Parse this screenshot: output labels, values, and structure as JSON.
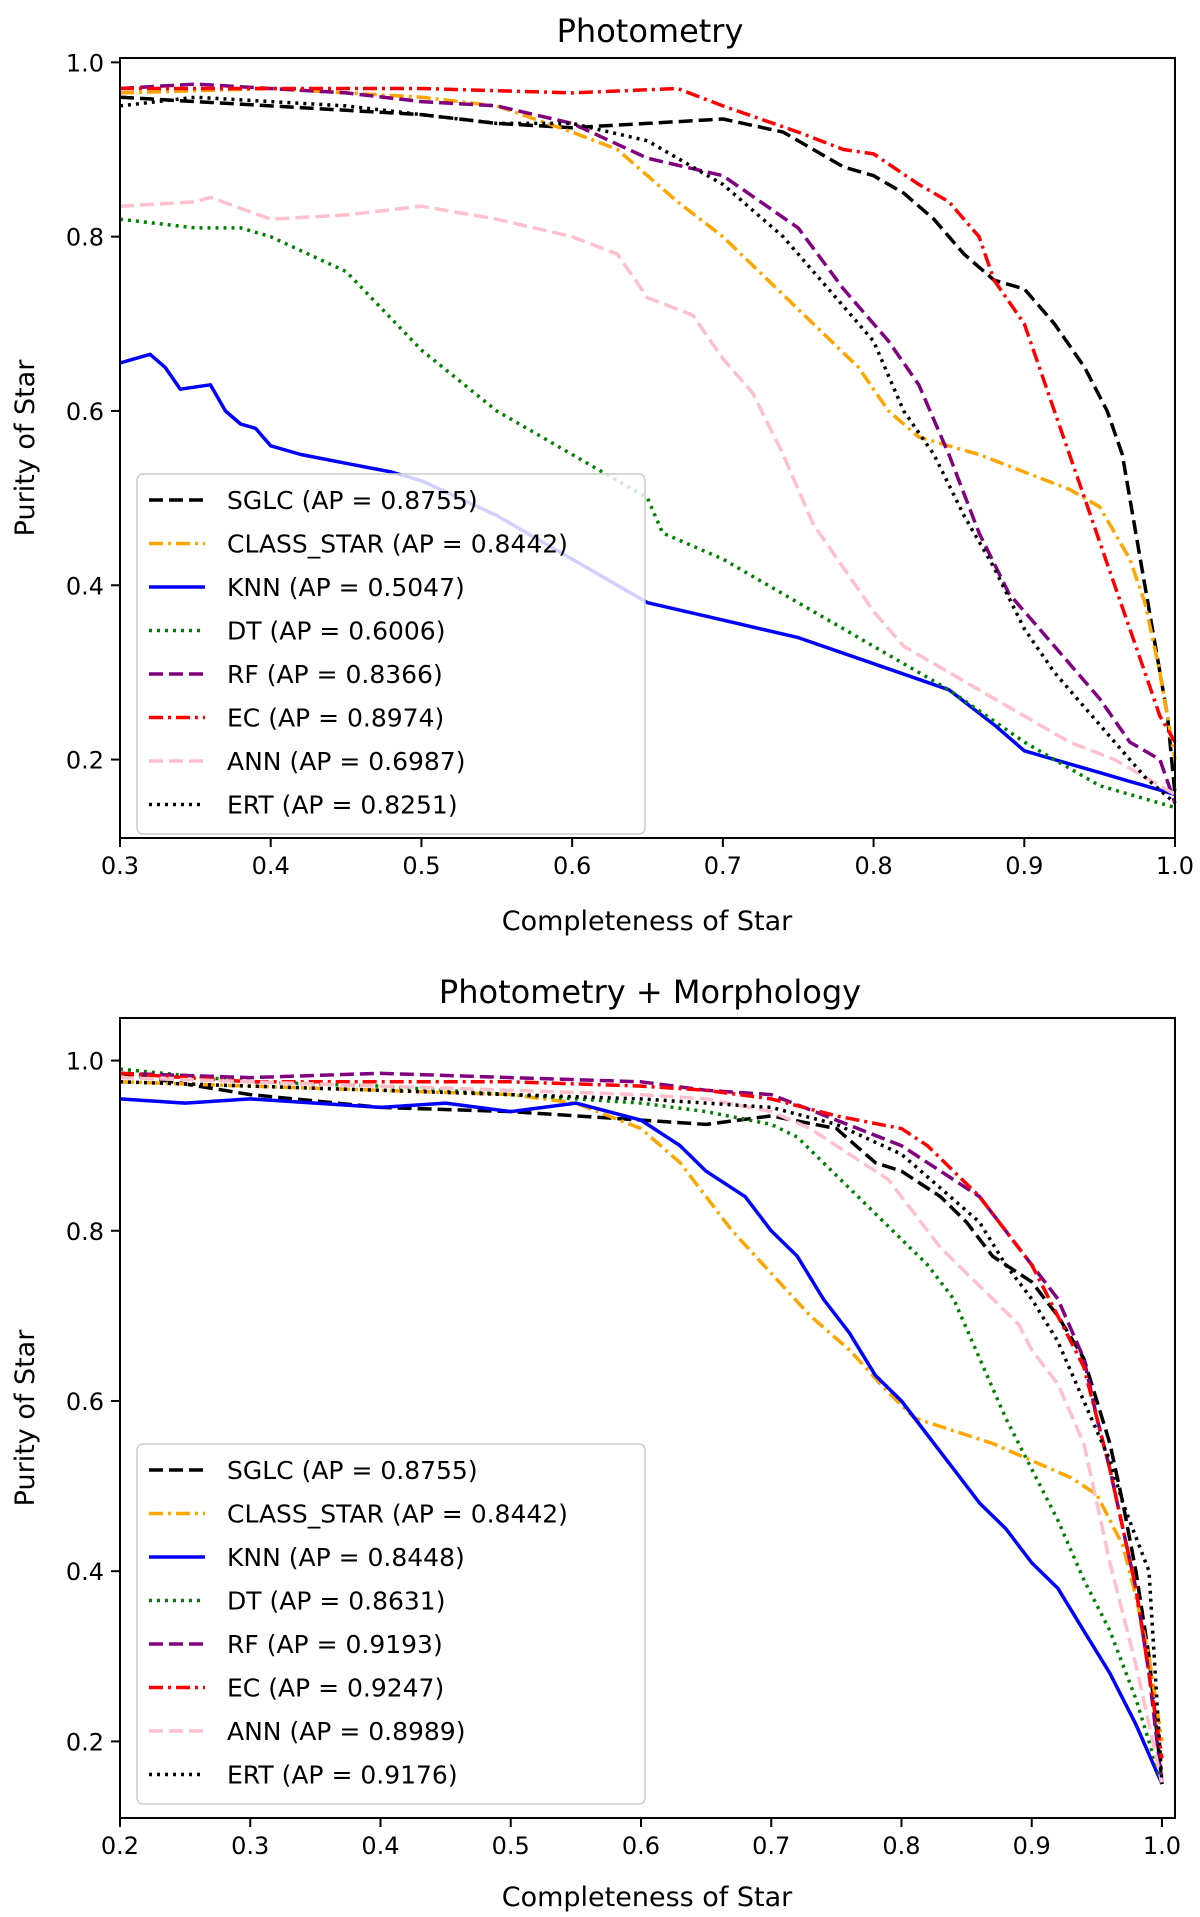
{
  "chart_data": [
    {
      "type": "line",
      "title": "Photometry",
      "xlabel": "Completeness of Star",
      "ylabel": "Purity of Star",
      "xlim": [
        0.3,
        1.0
      ],
      "ylim": [
        0.11,
        1.005
      ],
      "xticks": [
        0.3,
        0.4,
        0.5,
        0.6,
        0.7,
        0.8,
        0.9,
        1.0
      ],
      "yticks": [
        0.2,
        0.4,
        0.6,
        0.8,
        1.0
      ],
      "legend_position": "lower-left",
      "series": [
        {
          "name": "SGLC",
          "label": "SGLC (AP = 0.8755)",
          "color": "#000000",
          "style": "dashed",
          "x": [
            0.3,
            0.35,
            0.4,
            0.45,
            0.5,
            0.55,
            0.6,
            0.65,
            0.7,
            0.74,
            0.78,
            0.8,
            0.82,
            0.84,
            0.86,
            0.88,
            0.9,
            0.92,
            0.94,
            0.955,
            0.965,
            0.975,
            0.985,
            0.995,
            1.0
          ],
          "y": [
            0.96,
            0.955,
            0.95,
            0.945,
            0.94,
            0.93,
            0.925,
            0.93,
            0.935,
            0.92,
            0.88,
            0.87,
            0.85,
            0.82,
            0.78,
            0.75,
            0.74,
            0.7,
            0.65,
            0.6,
            0.55,
            0.45,
            0.35,
            0.25,
            0.16
          ]
        },
        {
          "name": "CLASS_STAR",
          "label": "CLASS_STAR (AP = 0.8442)",
          "color": "#FFA500",
          "style": "dashdot",
          "x": [
            0.3,
            0.4,
            0.5,
            0.55,
            0.6,
            0.63,
            0.65,
            0.67,
            0.7,
            0.73,
            0.76,
            0.79,
            0.81,
            0.83,
            0.85,
            0.87,
            0.9,
            0.93,
            0.95,
            0.97,
            0.98,
            0.99,
            1.0
          ],
          "y": [
            0.965,
            0.97,
            0.96,
            0.95,
            0.92,
            0.9,
            0.87,
            0.84,
            0.8,
            0.75,
            0.7,
            0.65,
            0.6,
            0.57,
            0.56,
            0.55,
            0.53,
            0.51,
            0.49,
            0.43,
            0.38,
            0.3,
            0.2
          ]
        },
        {
          "name": "KNN",
          "label": "KNN (AP = 0.5047)",
          "color": "#0000FF",
          "style": "solid",
          "x": [
            0.3,
            0.32,
            0.33,
            0.34,
            0.36,
            0.37,
            0.38,
            0.39,
            0.4,
            0.42,
            0.45,
            0.48,
            0.5,
            0.55,
            0.6,
            0.65,
            0.7,
            0.75,
            0.8,
            0.85,
            0.88,
            0.9,
            0.93,
            0.95,
            0.97,
            1.0
          ],
          "y": [
            0.655,
            0.665,
            0.65,
            0.625,
            0.63,
            0.6,
            0.585,
            0.58,
            0.56,
            0.55,
            0.54,
            0.53,
            0.52,
            0.48,
            0.43,
            0.38,
            0.36,
            0.34,
            0.31,
            0.28,
            0.24,
            0.21,
            0.195,
            0.185,
            0.175,
            0.16
          ]
        },
        {
          "name": "DT",
          "label": "DT (AP = 0.6006)",
          "color": "#008000",
          "style": "dotted",
          "x": [
            0.3,
            0.35,
            0.38,
            0.4,
            0.45,
            0.5,
            0.55,
            0.6,
            0.65,
            0.66,
            0.7,
            0.75,
            0.8,
            0.85,
            0.9,
            0.95,
            1.0
          ],
          "y": [
            0.82,
            0.81,
            0.81,
            0.8,
            0.76,
            0.67,
            0.6,
            0.55,
            0.5,
            0.46,
            0.43,
            0.38,
            0.33,
            0.28,
            0.22,
            0.17,
            0.145
          ]
        },
        {
          "name": "RF",
          "label": "RF (AP = 0.8366)",
          "color": "#800080",
          "style": "dashed",
          "x": [
            0.3,
            0.35,
            0.4,
            0.45,
            0.5,
            0.55,
            0.6,
            0.65,
            0.7,
            0.75,
            0.78,
            0.81,
            0.83,
            0.85,
            0.87,
            0.89,
            0.91,
            0.93,
            0.95,
            0.97,
            0.99,
            1.0
          ],
          "y": [
            0.97,
            0.975,
            0.97,
            0.965,
            0.955,
            0.95,
            0.93,
            0.89,
            0.87,
            0.81,
            0.74,
            0.68,
            0.63,
            0.55,
            0.46,
            0.39,
            0.35,
            0.31,
            0.27,
            0.22,
            0.2,
            0.15
          ]
        },
        {
          "name": "EC",
          "label": "EC (AP = 0.8974)",
          "color": "#FF0000",
          "style": "dashdot",
          "x": [
            0.3,
            0.4,
            0.5,
            0.6,
            0.67,
            0.7,
            0.75,
            0.78,
            0.8,
            0.83,
            0.85,
            0.87,
            0.88,
            0.9,
            0.91,
            0.92,
            0.93,
            0.94,
            0.95,
            0.96,
            0.97,
            0.98,
            0.99,
            1.0
          ],
          "y": [
            0.97,
            0.97,
            0.97,
            0.965,
            0.97,
            0.95,
            0.92,
            0.9,
            0.895,
            0.86,
            0.84,
            0.8,
            0.75,
            0.7,
            0.65,
            0.6,
            0.55,
            0.5,
            0.45,
            0.4,
            0.35,
            0.3,
            0.25,
            0.22
          ]
        },
        {
          "name": "ANN",
          "label": "ANN (AP = 0.6987)",
          "color": "#FFC0CB",
          "style": "dashed",
          "x": [
            0.3,
            0.35,
            0.36,
            0.4,
            0.45,
            0.5,
            0.55,
            0.6,
            0.63,
            0.65,
            0.68,
            0.7,
            0.72,
            0.74,
            0.76,
            0.78,
            0.8,
            0.82,
            0.85,
            0.88,
            0.9,
            0.93,
            0.96,
            0.98,
            1.0
          ],
          "y": [
            0.835,
            0.84,
            0.845,
            0.82,
            0.825,
            0.835,
            0.82,
            0.8,
            0.78,
            0.73,
            0.71,
            0.66,
            0.62,
            0.55,
            0.47,
            0.42,
            0.37,
            0.33,
            0.3,
            0.27,
            0.25,
            0.22,
            0.2,
            0.18,
            0.16
          ]
        },
        {
          "name": "ERT",
          "label": "ERT (AP = 0.8251)",
          "color": "#000000",
          "style": "dotted",
          "x": [
            0.3,
            0.35,
            0.4,
            0.45,
            0.5,
            0.55,
            0.6,
            0.65,
            0.7,
            0.74,
            0.77,
            0.8,
            0.82,
            0.84,
            0.86,
            0.88,
            0.9,
            0.92,
            0.94,
            0.96,
            0.98,
            1.0
          ],
          "y": [
            0.95,
            0.96,
            0.955,
            0.95,
            0.94,
            0.93,
            0.93,
            0.91,
            0.86,
            0.8,
            0.74,
            0.68,
            0.6,
            0.55,
            0.48,
            0.42,
            0.35,
            0.3,
            0.26,
            0.22,
            0.18,
            0.15
          ]
        }
      ]
    },
    {
      "type": "line",
      "title": "Photometry + Morphology",
      "xlabel": "Completeness of Star",
      "ylabel": "Purity of Star",
      "xlim": [
        0.2,
        1.01
      ],
      "ylim": [
        0.11,
        1.05
      ],
      "xticks": [
        0.2,
        0.3,
        0.4,
        0.5,
        0.6,
        0.7,
        0.8,
        0.9,
        1.0
      ],
      "yticks": [
        0.2,
        0.4,
        0.6,
        0.8,
        1.0
      ],
      "legend_position": "lower-left",
      "series": [
        {
          "name": "SGLC",
          "label": "SGLC (AP = 0.8755)",
          "color": "#000000",
          "style": "dashed",
          "x": [
            0.2,
            0.3,
            0.4,
            0.5,
            0.6,
            0.65,
            0.7,
            0.75,
            0.78,
            0.8,
            0.83,
            0.85,
            0.87,
            0.89,
            0.9,
            0.92,
            0.94,
            0.95,
            0.96,
            0.97,
            0.98,
            0.99,
            1.0
          ],
          "y": [
            0.985,
            0.96,
            0.945,
            0.94,
            0.93,
            0.925,
            0.935,
            0.92,
            0.88,
            0.87,
            0.84,
            0.81,
            0.77,
            0.75,
            0.74,
            0.7,
            0.65,
            0.6,
            0.55,
            0.48,
            0.4,
            0.3,
            0.15
          ]
        },
        {
          "name": "CLASS_STAR",
          "label": "CLASS_STAR (AP = 0.8442)",
          "color": "#FFA500",
          "style": "dashdot",
          "x": [
            0.2,
            0.3,
            0.4,
            0.5,
            0.55,
            0.6,
            0.63,
            0.65,
            0.67,
            0.7,
            0.73,
            0.76,
            0.79,
            0.81,
            0.83,
            0.85,
            0.87,
            0.9,
            0.93,
            0.95,
            0.97,
            0.98,
            0.99,
            1.0
          ],
          "y": [
            0.975,
            0.97,
            0.965,
            0.96,
            0.95,
            0.92,
            0.88,
            0.84,
            0.8,
            0.75,
            0.7,
            0.66,
            0.61,
            0.58,
            0.57,
            0.56,
            0.55,
            0.53,
            0.51,
            0.49,
            0.43,
            0.37,
            0.3,
            0.2
          ]
        },
        {
          "name": "KNN",
          "label": "KNN (AP = 0.8448)",
          "color": "#0000FF",
          "style": "solid",
          "x": [
            0.2,
            0.25,
            0.3,
            0.35,
            0.4,
            0.45,
            0.5,
            0.55,
            0.6,
            0.63,
            0.65,
            0.68,
            0.7,
            0.72,
            0.74,
            0.76,
            0.78,
            0.8,
            0.82,
            0.84,
            0.86,
            0.88,
            0.9,
            0.92,
            0.94,
            0.96,
            0.98,
            1.0
          ],
          "y": [
            0.955,
            0.95,
            0.955,
            0.95,
            0.945,
            0.95,
            0.94,
            0.95,
            0.93,
            0.9,
            0.87,
            0.84,
            0.8,
            0.77,
            0.72,
            0.68,
            0.63,
            0.6,
            0.56,
            0.52,
            0.48,
            0.45,
            0.41,
            0.38,
            0.33,
            0.28,
            0.22,
            0.15
          ]
        },
        {
          "name": "DT",
          "label": "DT (AP = 0.8631)",
          "color": "#008000",
          "style": "dotted",
          "x": [
            0.2,
            0.3,
            0.4,
            0.5,
            0.6,
            0.65,
            0.7,
            0.72,
            0.74,
            0.76,
            0.78,
            0.8,
            0.82,
            0.84,
            0.86,
            0.88,
            0.9,
            0.92,
            0.94,
            0.96,
            0.98,
            1.0
          ],
          "y": [
            0.99,
            0.975,
            0.97,
            0.96,
            0.95,
            0.94,
            0.925,
            0.91,
            0.88,
            0.85,
            0.82,
            0.79,
            0.76,
            0.72,
            0.65,
            0.58,
            0.52,
            0.46,
            0.39,
            0.33,
            0.25,
            0.15
          ]
        },
        {
          "name": "RF",
          "label": "RF (AP = 0.9193)",
          "color": "#800080",
          "style": "dashed",
          "x": [
            0.2,
            0.3,
            0.4,
            0.5,
            0.6,
            0.65,
            0.7,
            0.75,
            0.8,
            0.83,
            0.86,
            0.88,
            0.9,
            0.92,
            0.94,
            0.95,
            0.96,
            0.97,
            0.98,
            0.99,
            1.0
          ],
          "y": [
            0.985,
            0.98,
            0.985,
            0.98,
            0.975,
            0.965,
            0.96,
            0.93,
            0.9,
            0.87,
            0.84,
            0.8,
            0.76,
            0.72,
            0.65,
            0.58,
            0.52,
            0.45,
            0.38,
            0.28,
            0.15
          ]
        },
        {
          "name": "EC",
          "label": "EC (AP = 0.9247)",
          "color": "#FF0000",
          "style": "dashdot",
          "x": [
            0.2,
            0.3,
            0.4,
            0.5,
            0.6,
            0.65,
            0.7,
            0.75,
            0.8,
            0.82,
            0.84,
            0.86,
            0.88,
            0.9,
            0.92,
            0.94,
            0.95,
            0.96,
            0.97,
            0.98,
            0.99,
            1.0
          ],
          "y": [
            0.985,
            0.975,
            0.975,
            0.975,
            0.97,
            0.965,
            0.955,
            0.935,
            0.92,
            0.9,
            0.87,
            0.84,
            0.8,
            0.76,
            0.7,
            0.64,
            0.58,
            0.52,
            0.45,
            0.38,
            0.28,
            0.18
          ]
        },
        {
          "name": "ANN",
          "label": "ANN (AP = 0.8989)",
          "color": "#FFC0CB",
          "style": "dashed",
          "x": [
            0.2,
            0.3,
            0.4,
            0.5,
            0.6,
            0.65,
            0.7,
            0.73,
            0.76,
            0.79,
            0.81,
            0.83,
            0.85,
            0.87,
            0.89,
            0.9,
            0.92,
            0.94,
            0.95,
            0.96,
            0.97,
            0.98,
            0.99,
            1.0
          ],
          "y": [
            0.98,
            0.975,
            0.97,
            0.965,
            0.96,
            0.955,
            0.94,
            0.92,
            0.89,
            0.86,
            0.82,
            0.78,
            0.75,
            0.72,
            0.69,
            0.66,
            0.62,
            0.55,
            0.48,
            0.41,
            0.35,
            0.29,
            0.22,
            0.15
          ]
        },
        {
          "name": "ERT",
          "label": "ERT (AP = 0.9176)",
          "color": "#000000",
          "style": "dotted",
          "x": [
            0.2,
            0.3,
            0.4,
            0.5,
            0.6,
            0.65,
            0.7,
            0.75,
            0.8,
            0.83,
            0.86,
            0.88,
            0.9,
            0.92,
            0.94,
            0.96,
            0.97,
            0.98,
            0.99,
            1.0
          ],
          "y": [
            0.975,
            0.97,
            0.965,
            0.96,
            0.955,
            0.95,
            0.945,
            0.925,
            0.89,
            0.85,
            0.81,
            0.76,
            0.72,
            0.67,
            0.6,
            0.53,
            0.48,
            0.44,
            0.4,
            0.15
          ]
        }
      ]
    }
  ]
}
